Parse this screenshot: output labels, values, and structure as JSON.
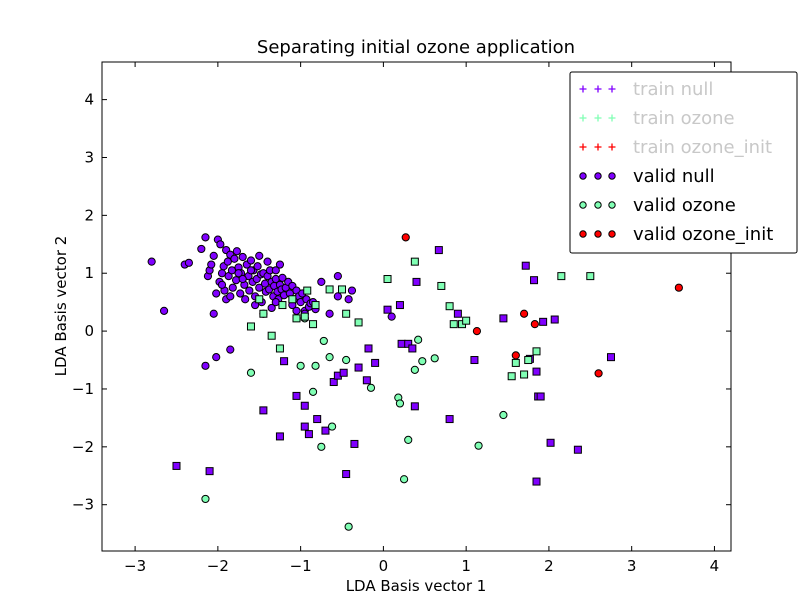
{
  "chart_data": {
    "type": "scatter",
    "title": "Separating initial ozone application",
    "xlabel": "LDA Basis vector 1",
    "ylabel": "LDA Basis vector 2",
    "xlim": [
      -3.4,
      4.2
    ],
    "ylim": [
      -3.8,
      4.65
    ],
    "xticks": [
      -3,
      -2,
      -1,
      0,
      1,
      2,
      3,
      4
    ],
    "yticks": [
      -3,
      -2,
      -1,
      0,
      1,
      2,
      3,
      4
    ],
    "xtick_labels": [
      "−3",
      "−2",
      "−1",
      "0",
      "1",
      "2",
      "3",
      "4"
    ],
    "ytick_labels": [
      "−3",
      "−2",
      "−1",
      "0",
      "1",
      "2",
      "3",
      "4"
    ],
    "grid": false,
    "legend_position": "top-right",
    "legend": [
      {
        "label": "train null",
        "marker": "plus",
        "color": "#8000ff",
        "text_color": "#c8c8c8"
      },
      {
        "label": "train ozone",
        "marker": "plus",
        "color": "#80ffb4",
        "text_color": "#c8c8c8"
      },
      {
        "label": "train ozone_init",
        "marker": "plus",
        "color": "#ff0000",
        "text_color": "#c8c8c8"
      },
      {
        "label": "valid null",
        "marker": "circle",
        "color": "#8000ff",
        "text_color": "#000000"
      },
      {
        "label": "valid ozone",
        "marker": "circle",
        "color": "#80ffb4",
        "text_color": "#000000"
      },
      {
        "label": "valid ozone_init",
        "marker": "circle",
        "color": "#ff0000",
        "text_color": "#000000"
      }
    ],
    "series": [
      {
        "name": "valid null",
        "marker": "circle",
        "color": "#8000ff",
        "points": [
          [
            -2.8,
            1.2
          ],
          [
            -2.65,
            0.35
          ],
          [
            -2.4,
            1.15
          ],
          [
            -2.35,
            1.18
          ],
          [
            -2.2,
            1.42
          ],
          [
            -2.15,
            1.62
          ],
          [
            -2.12,
            0.95
          ],
          [
            -2.1,
            1.05
          ],
          [
            -2.08,
            1.15
          ],
          [
            -2.05,
            1.3
          ],
          [
            -2.02,
            0.65
          ],
          [
            -2.0,
            1.58
          ],
          [
            -1.98,
            0.85
          ],
          [
            -1.97,
            1.5
          ],
          [
            -1.95,
            1.0
          ],
          [
            -1.93,
            1.12
          ],
          [
            -1.92,
            0.7
          ],
          [
            -1.9,
            1.4
          ],
          [
            -1.88,
            1.2
          ],
          [
            -1.87,
            0.95
          ],
          [
            -1.85,
            1.32
          ],
          [
            -1.83,
            1.05
          ],
          [
            -1.82,
            0.75
          ],
          [
            -1.8,
            1.25
          ],
          [
            -1.78,
            0.88
          ],
          [
            -1.77,
            1.38
          ],
          [
            -1.75,
            1.1
          ],
          [
            -1.73,
            0.65
          ],
          [
            -1.72,
            1.0
          ],
          [
            -1.7,
            1.28
          ],
          [
            -1.68,
            0.8
          ],
          [
            -1.67,
            0.55
          ],
          [
            -1.65,
            1.15
          ],
          [
            -1.63,
            0.95
          ],
          [
            -1.62,
            0.7
          ],
          [
            -1.6,
            1.22
          ],
          [
            -1.58,
            0.85
          ],
          [
            -1.57,
            1.05
          ],
          [
            -1.55,
            0.6
          ],
          [
            -1.53,
            0.9
          ],
          [
            -1.52,
            1.12
          ],
          [
            -1.5,
            0.75
          ],
          [
            -1.48,
            0.98
          ],
          [
            -1.47,
            0.5
          ],
          [
            -1.45,
            1.0
          ],
          [
            -1.43,
            0.82
          ],
          [
            -1.42,
            0.68
          ],
          [
            -1.4,
            0.95
          ],
          [
            -1.38,
            0.72
          ],
          [
            -1.37,
            1.05
          ],
          [
            -1.35,
            0.85
          ],
          [
            -1.33,
            0.6
          ],
          [
            -1.32,
            0.78
          ],
          [
            -1.3,
            0.9
          ],
          [
            -1.28,
            0.68
          ],
          [
            -1.27,
            0.55
          ],
          [
            -1.25,
            0.8
          ],
          [
            -1.23,
            0.72
          ],
          [
            -1.22,
            0.92
          ],
          [
            -1.2,
            0.62
          ],
          [
            -1.18,
            0.75
          ],
          [
            -1.15,
            0.85
          ],
          [
            -1.13,
            0.65
          ],
          [
            -1.1,
            0.78
          ],
          [
            -1.08,
            0.55
          ],
          [
            -1.05,
            0.7
          ],
          [
            -1.02,
            0.6
          ],
          [
            -1.0,
            0.5
          ],
          [
            -0.98,
            0.65
          ],
          [
            -0.95,
            0.35
          ],
          [
            -0.93,
            0.55
          ],
          [
            -0.9,
            0.42
          ],
          [
            -0.88,
            0.48
          ],
          [
            -0.85,
            0.5
          ],
          [
            -0.82,
            0.38
          ],
          [
            -1.25,
            1.15
          ],
          [
            -1.5,
            1.3
          ],
          [
            -1.6,
            1.05
          ],
          [
            -1.9,
            0.55
          ],
          [
            -2.05,
            0.3
          ],
          [
            -1.4,
            1.2
          ],
          [
            -1.55,
            0.45
          ],
          [
            -1.3,
            1.05
          ],
          [
            -1.1,
            0.45
          ],
          [
            -1.35,
            0.4
          ],
          [
            -1.45,
            0.3
          ],
          [
            -1.7,
            0.9
          ],
          [
            -1.95,
            0.8
          ],
          [
            -1.85,
            0.6
          ],
          [
            -1.75,
            1.0
          ],
          [
            -2.15,
            -0.6
          ],
          [
            -2.02,
            -0.45
          ],
          [
            -1.85,
            -0.32
          ],
          [
            -1.3,
            0.5
          ],
          [
            -1.05,
            0.35
          ],
          [
            -0.95,
            0.3
          ],
          [
            -0.75,
            0.85
          ],
          [
            -0.65,
            0.3
          ],
          [
            -0.55,
            0.6
          ],
          [
            -0.42,
            0.55
          ],
          [
            -0.38,
            0.7
          ],
          [
            -0.55,
            0.95
          ],
          [
            0.1,
            0.25
          ]
        ]
      },
      {
        "name": "valid null",
        "marker": "square",
        "color": "#8000ff",
        "points": [
          [
            -2.5,
            -2.33
          ],
          [
            -2.1,
            -2.42
          ],
          [
            -1.45,
            -1.37
          ],
          [
            -1.25,
            -1.82
          ],
          [
            -1.2,
            -0.52
          ],
          [
            -1.05,
            -1.12
          ],
          [
            -0.95,
            -1.29
          ],
          [
            -0.95,
            -1.65
          ],
          [
            -0.9,
            -1.78
          ],
          [
            -0.8,
            -1.52
          ],
          [
            -0.7,
            -1.72
          ],
          [
            -0.6,
            -0.88
          ],
          [
            -0.55,
            -0.77
          ],
          [
            -0.48,
            -0.72
          ],
          [
            -0.45,
            -2.47
          ],
          [
            -0.35,
            -1.95
          ],
          [
            -0.3,
            -0.63
          ],
          [
            -0.2,
            -0.85
          ],
          [
            -0.18,
            -0.3
          ],
          [
            0.05,
            0.37
          ],
          [
            0.2,
            0.45
          ],
          [
            0.22,
            -0.22
          ],
          [
            0.3,
            -0.22
          ],
          [
            0.35,
            -0.3
          ],
          [
            0.38,
            -1.3
          ],
          [
            0.4,
            0.85
          ],
          [
            0.8,
            -1.52
          ],
          [
            0.9,
            0.3
          ],
          [
            0.67,
            1.4
          ],
          [
            1.1,
            -0.5
          ],
          [
            1.45,
            0.22
          ],
          [
            1.72,
            1.13
          ],
          [
            1.77,
            -0.48
          ],
          [
            1.82,
            0.88
          ],
          [
            1.85,
            -0.7
          ],
          [
            1.87,
            -1.13
          ],
          [
            1.9,
            -1.13
          ],
          [
            1.85,
            -2.6
          ],
          [
            1.93,
            0.16
          ],
          [
            2.02,
            -1.93
          ],
          [
            2.07,
            0.2
          ],
          [
            2.35,
            -2.05
          ],
          [
            2.75,
            -0.45
          ],
          [
            -0.1,
            -0.55
          ]
        ]
      },
      {
        "name": "valid ozone",
        "marker": "circle",
        "color": "#80ffb4",
        "points": [
          [
            -2.15,
            -2.9
          ],
          [
            -0.85,
            -1.05
          ],
          [
            -0.82,
            -0.6
          ],
          [
            -0.72,
            -0.17
          ],
          [
            -0.75,
            -2.0
          ],
          [
            -0.65,
            -0.45
          ],
          [
            -0.45,
            -0.5
          ],
          [
            -0.42,
            -3.38
          ],
          [
            -0.15,
            -0.98
          ],
          [
            0.18,
            -1.15
          ],
          [
            0.2,
            -1.25
          ],
          [
            0.25,
            -2.56
          ],
          [
            0.3,
            -1.88
          ],
          [
            0.38,
            -0.67
          ],
          [
            0.42,
            -0.15
          ],
          [
            0.47,
            -0.52
          ],
          [
            0.62,
            -0.47
          ],
          [
            1.15,
            -1.98
          ],
          [
            1.45,
            -1.45
          ],
          [
            -1.0,
            -0.6
          ],
          [
            -0.95,
            0.22
          ],
          [
            -1.6,
            -0.72
          ],
          [
            -0.62,
            -1.65
          ]
        ]
      },
      {
        "name": "valid ozone",
        "marker": "square",
        "color": "#80ffb4",
        "points": [
          [
            -1.5,
            0.55
          ],
          [
            -1.45,
            0.3
          ],
          [
            -1.35,
            -0.08
          ],
          [
            -1.25,
            -0.3
          ],
          [
            -1.22,
            0.45
          ],
          [
            -1.1,
            0.55
          ],
          [
            -1.05,
            0.22
          ],
          [
            -0.95,
            0.25
          ],
          [
            -0.92,
            0.7
          ],
          [
            -0.85,
            0.12
          ],
          [
            -0.82,
            0.45
          ],
          [
            -0.65,
            0.72
          ],
          [
            -0.5,
            0.72
          ],
          [
            -0.45,
            0.3
          ],
          [
            -0.3,
            0.15
          ],
          [
            0.05,
            0.9
          ],
          [
            0.38,
            1.2
          ],
          [
            0.7,
            0.78
          ],
          [
            0.8,
            0.43
          ],
          [
            0.85,
            0.12
          ],
          [
            0.95,
            0.12
          ],
          [
            1.0,
            0.18
          ],
          [
            1.55,
            -0.78
          ],
          [
            1.6,
            -0.55
          ],
          [
            1.7,
            -0.75
          ],
          [
            1.75,
            -0.5
          ],
          [
            1.85,
            -0.35
          ],
          [
            2.15,
            0.95
          ],
          [
            2.5,
            0.95
          ],
          [
            -1.6,
            0.08
          ]
        ]
      },
      {
        "name": "valid ozone_init",
        "marker": "circle",
        "color": "#ff0000",
        "points": [
          [
            0.27,
            1.62
          ],
          [
            1.13,
            0.0
          ],
          [
            1.6,
            -0.42
          ],
          [
            1.7,
            0.3
          ],
          [
            1.83,
            0.12
          ],
          [
            2.6,
            -0.73
          ],
          [
            3.57,
            0.75
          ]
        ]
      }
    ]
  }
}
